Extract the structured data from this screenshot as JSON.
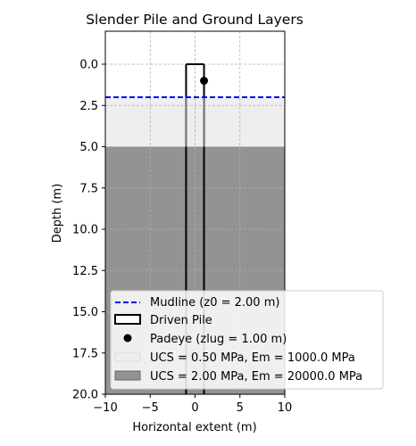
{
  "chart_data": {
    "type": "area",
    "title": "Slender Pile and Ground Layers",
    "xlabel": "Horizontal extent  (m)",
    "ylabel": "Depth (m)",
    "xlim": [
      -10,
      10
    ],
    "ylim": [
      20,
      -2
    ],
    "y_inverted": true,
    "grid": true,
    "legend_position": "lower right",
    "xticks": [
      -10,
      -5,
      0,
      5,
      10
    ],
    "xtick_labels": [
      "−10",
      "−5",
      "0",
      "5",
      "10"
    ],
    "yticks": [
      0,
      2.5,
      5,
      7.5,
      10,
      12.5,
      15,
      17.5,
      20
    ],
    "ytick_labels": [
      "0.0",
      "2.5",
      "5.0",
      "7.5",
      "10.0",
      "12.5",
      "15.0",
      "17.5",
      "20.0"
    ],
    "mudline": {
      "depth": 2.0,
      "x": [
        -10,
        10
      ],
      "color": "#0000ff",
      "label": "Mudline (z0 = 2.00 m)"
    },
    "pile": {
      "x_left": -1,
      "x_right": 1,
      "top": 0,
      "bottom": 20,
      "color": "#000000",
      "label": "Driven Pile"
    },
    "padeye": {
      "x": 1,
      "depth": 1.0,
      "color": "#000000",
      "label": "Padeye (zlug = 1.00 m)"
    },
    "layers": [
      {
        "top": 2.0,
        "bottom": 5.0,
        "color": "#eeeeee",
        "label": "UCS = 0.50 MPa, Em = 1000.0 MPa"
      },
      {
        "top": 5.0,
        "bottom": 20.0,
        "color": "#939393",
        "label": "UCS = 2.00 MPa, Em = 20000.0 MPa"
      }
    ]
  }
}
